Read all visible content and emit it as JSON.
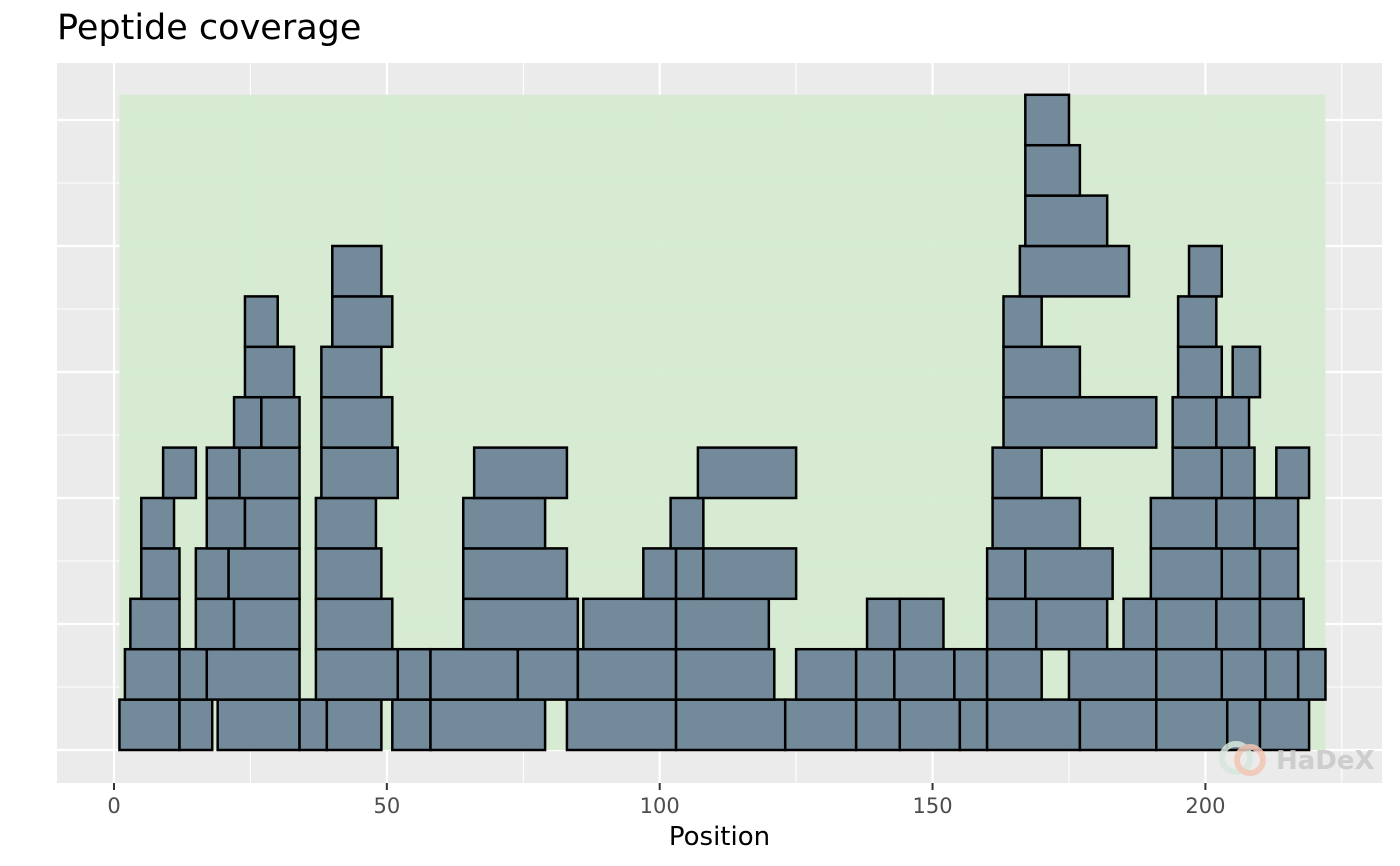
{
  "chart_data": {
    "type": "bar",
    "subtype": "peptide-coverage",
    "title": "Peptide coverage",
    "xlabel": "Position",
    "ylabel": "",
    "xlim": [
      -1,
      225
    ],
    "ylim": [
      0,
      13
    ],
    "xticks": [
      0,
      50,
      100,
      150,
      200
    ],
    "yticks_visible": false,
    "grid": true,
    "coverage_range": [
      1,
      222
    ],
    "colors": {
      "panel_background": "#ebebeb",
      "grid": "#ffffff",
      "coverage_fill": "#d5ebd1",
      "peptide_fill": "#728a99",
      "peptide_stroke": "#000000"
    },
    "peptides": [
      {
        "start": 1,
        "end": 12,
        "level": 1
      },
      {
        "start": 12,
        "end": 18,
        "level": 1
      },
      {
        "start": 19,
        "end": 34,
        "level": 1
      },
      {
        "start": 34,
        "end": 39,
        "level": 1
      },
      {
        "start": 39,
        "end": 49,
        "level": 1
      },
      {
        "start": 51,
        "end": 58,
        "level": 1
      },
      {
        "start": 58,
        "end": 79,
        "level": 1
      },
      {
        "start": 83,
        "end": 103,
        "level": 1
      },
      {
        "start": 103,
        "end": 123,
        "level": 1
      },
      {
        "start": 123,
        "end": 136,
        "level": 1
      },
      {
        "start": 136,
        "end": 144,
        "level": 1
      },
      {
        "start": 144,
        "end": 155,
        "level": 1
      },
      {
        "start": 155,
        "end": 160,
        "level": 1
      },
      {
        "start": 160,
        "end": 177,
        "level": 1
      },
      {
        "start": 177,
        "end": 191,
        "level": 1
      },
      {
        "start": 191,
        "end": 204,
        "level": 1
      },
      {
        "start": 204,
        "end": 210,
        "level": 1
      },
      {
        "start": 210,
        "end": 219,
        "level": 1
      },
      {
        "start": 2,
        "end": 12,
        "level": 2
      },
      {
        "start": 12,
        "end": 17,
        "level": 2
      },
      {
        "start": 17,
        "end": 34,
        "level": 2
      },
      {
        "start": 37,
        "end": 52,
        "level": 2
      },
      {
        "start": 52,
        "end": 58,
        "level": 2
      },
      {
        "start": 58,
        "end": 74,
        "level": 2
      },
      {
        "start": 74,
        "end": 85,
        "level": 2
      },
      {
        "start": 85,
        "end": 103,
        "level": 2
      },
      {
        "start": 103,
        "end": 121,
        "level": 2
      },
      {
        "start": 125,
        "end": 136,
        "level": 2
      },
      {
        "start": 136,
        "end": 143,
        "level": 2
      },
      {
        "start": 143,
        "end": 154,
        "level": 2
      },
      {
        "start": 154,
        "end": 160,
        "level": 2
      },
      {
        "start": 160,
        "end": 170,
        "level": 2
      },
      {
        "start": 175,
        "end": 191,
        "level": 2
      },
      {
        "start": 191,
        "end": 203,
        "level": 2
      },
      {
        "start": 203,
        "end": 211,
        "level": 2
      },
      {
        "start": 211,
        "end": 217,
        "level": 2
      },
      {
        "start": 217,
        "end": 222,
        "level": 2
      },
      {
        "start": 3,
        "end": 12,
        "level": 3
      },
      {
        "start": 15,
        "end": 22,
        "level": 3
      },
      {
        "start": 22,
        "end": 34,
        "level": 3
      },
      {
        "start": 37,
        "end": 51,
        "level": 3
      },
      {
        "start": 64,
        "end": 85,
        "level": 3
      },
      {
        "start": 86,
        "end": 103,
        "level": 3
      },
      {
        "start": 103,
        "end": 120,
        "level": 3
      },
      {
        "start": 138,
        "end": 144,
        "level": 3
      },
      {
        "start": 144,
        "end": 152,
        "level": 3
      },
      {
        "start": 160,
        "end": 169,
        "level": 3
      },
      {
        "start": 169,
        "end": 182,
        "level": 3
      },
      {
        "start": 185,
        "end": 191,
        "level": 3
      },
      {
        "start": 191,
        "end": 202,
        "level": 3
      },
      {
        "start": 202,
        "end": 210,
        "level": 3
      },
      {
        "start": 210,
        "end": 218,
        "level": 3
      },
      {
        "start": 5,
        "end": 12,
        "level": 4
      },
      {
        "start": 15,
        "end": 21,
        "level": 4
      },
      {
        "start": 21,
        "end": 34,
        "level": 4
      },
      {
        "start": 37,
        "end": 49,
        "level": 4
      },
      {
        "start": 64,
        "end": 83,
        "level": 4
      },
      {
        "start": 97,
        "end": 103,
        "level": 4
      },
      {
        "start": 103,
        "end": 108,
        "level": 4
      },
      {
        "start": 108,
        "end": 125,
        "level": 4
      },
      {
        "start": 160,
        "end": 167,
        "level": 4
      },
      {
        "start": 167,
        "end": 183,
        "level": 4
      },
      {
        "start": 190,
        "end": 203,
        "level": 4
      },
      {
        "start": 203,
        "end": 210,
        "level": 4
      },
      {
        "start": 210,
        "end": 217,
        "level": 4
      },
      {
        "start": 5,
        "end": 11,
        "level": 5
      },
      {
        "start": 17,
        "end": 24,
        "level": 5
      },
      {
        "start": 24,
        "end": 34,
        "level": 5
      },
      {
        "start": 37,
        "end": 48,
        "level": 5
      },
      {
        "start": 64,
        "end": 79,
        "level": 5
      },
      {
        "start": 102,
        "end": 108,
        "level": 5
      },
      {
        "start": 161,
        "end": 177,
        "level": 5
      },
      {
        "start": 190,
        "end": 202,
        "level": 5
      },
      {
        "start": 202,
        "end": 209,
        "level": 5
      },
      {
        "start": 209,
        "end": 217,
        "level": 5
      },
      {
        "start": 9,
        "end": 15,
        "level": 6
      },
      {
        "start": 17,
        "end": 23,
        "level": 6
      },
      {
        "start": 23,
        "end": 34,
        "level": 6
      },
      {
        "start": 38,
        "end": 52,
        "level": 6
      },
      {
        "start": 66,
        "end": 83,
        "level": 6
      },
      {
        "start": 107,
        "end": 125,
        "level": 6
      },
      {
        "start": 161,
        "end": 170,
        "level": 6
      },
      {
        "start": 194,
        "end": 203,
        "level": 6
      },
      {
        "start": 203,
        "end": 209,
        "level": 6
      },
      {
        "start": 213,
        "end": 219,
        "level": 6
      },
      {
        "start": 22,
        "end": 27,
        "level": 7
      },
      {
        "start": 27,
        "end": 34,
        "level": 7
      },
      {
        "start": 38,
        "end": 51,
        "level": 7
      },
      {
        "start": 163,
        "end": 191,
        "level": 7
      },
      {
        "start": 194,
        "end": 202,
        "level": 7
      },
      {
        "start": 202,
        "end": 208,
        "level": 7
      },
      {
        "start": 24,
        "end": 33,
        "level": 8
      },
      {
        "start": 38,
        "end": 49,
        "level": 8
      },
      {
        "start": 163,
        "end": 177,
        "level": 8
      },
      {
        "start": 195,
        "end": 203,
        "level": 8
      },
      {
        "start": 205,
        "end": 210,
        "level": 8
      },
      {
        "start": 24,
        "end": 30,
        "level": 9
      },
      {
        "start": 40,
        "end": 51,
        "level": 9
      },
      {
        "start": 163,
        "end": 170,
        "level": 9
      },
      {
        "start": 195,
        "end": 202,
        "level": 9
      },
      {
        "start": 40,
        "end": 49,
        "level": 10
      },
      {
        "start": 166,
        "end": 186,
        "level": 10
      },
      {
        "start": 197,
        "end": 203,
        "level": 10
      },
      {
        "start": 167,
        "end": 182,
        "level": 11
      },
      {
        "start": 167,
        "end": 177,
        "level": 12
      },
      {
        "start": 167,
        "end": 175,
        "level": 13
      }
    ]
  },
  "watermark": {
    "text": "HaDeX"
  }
}
